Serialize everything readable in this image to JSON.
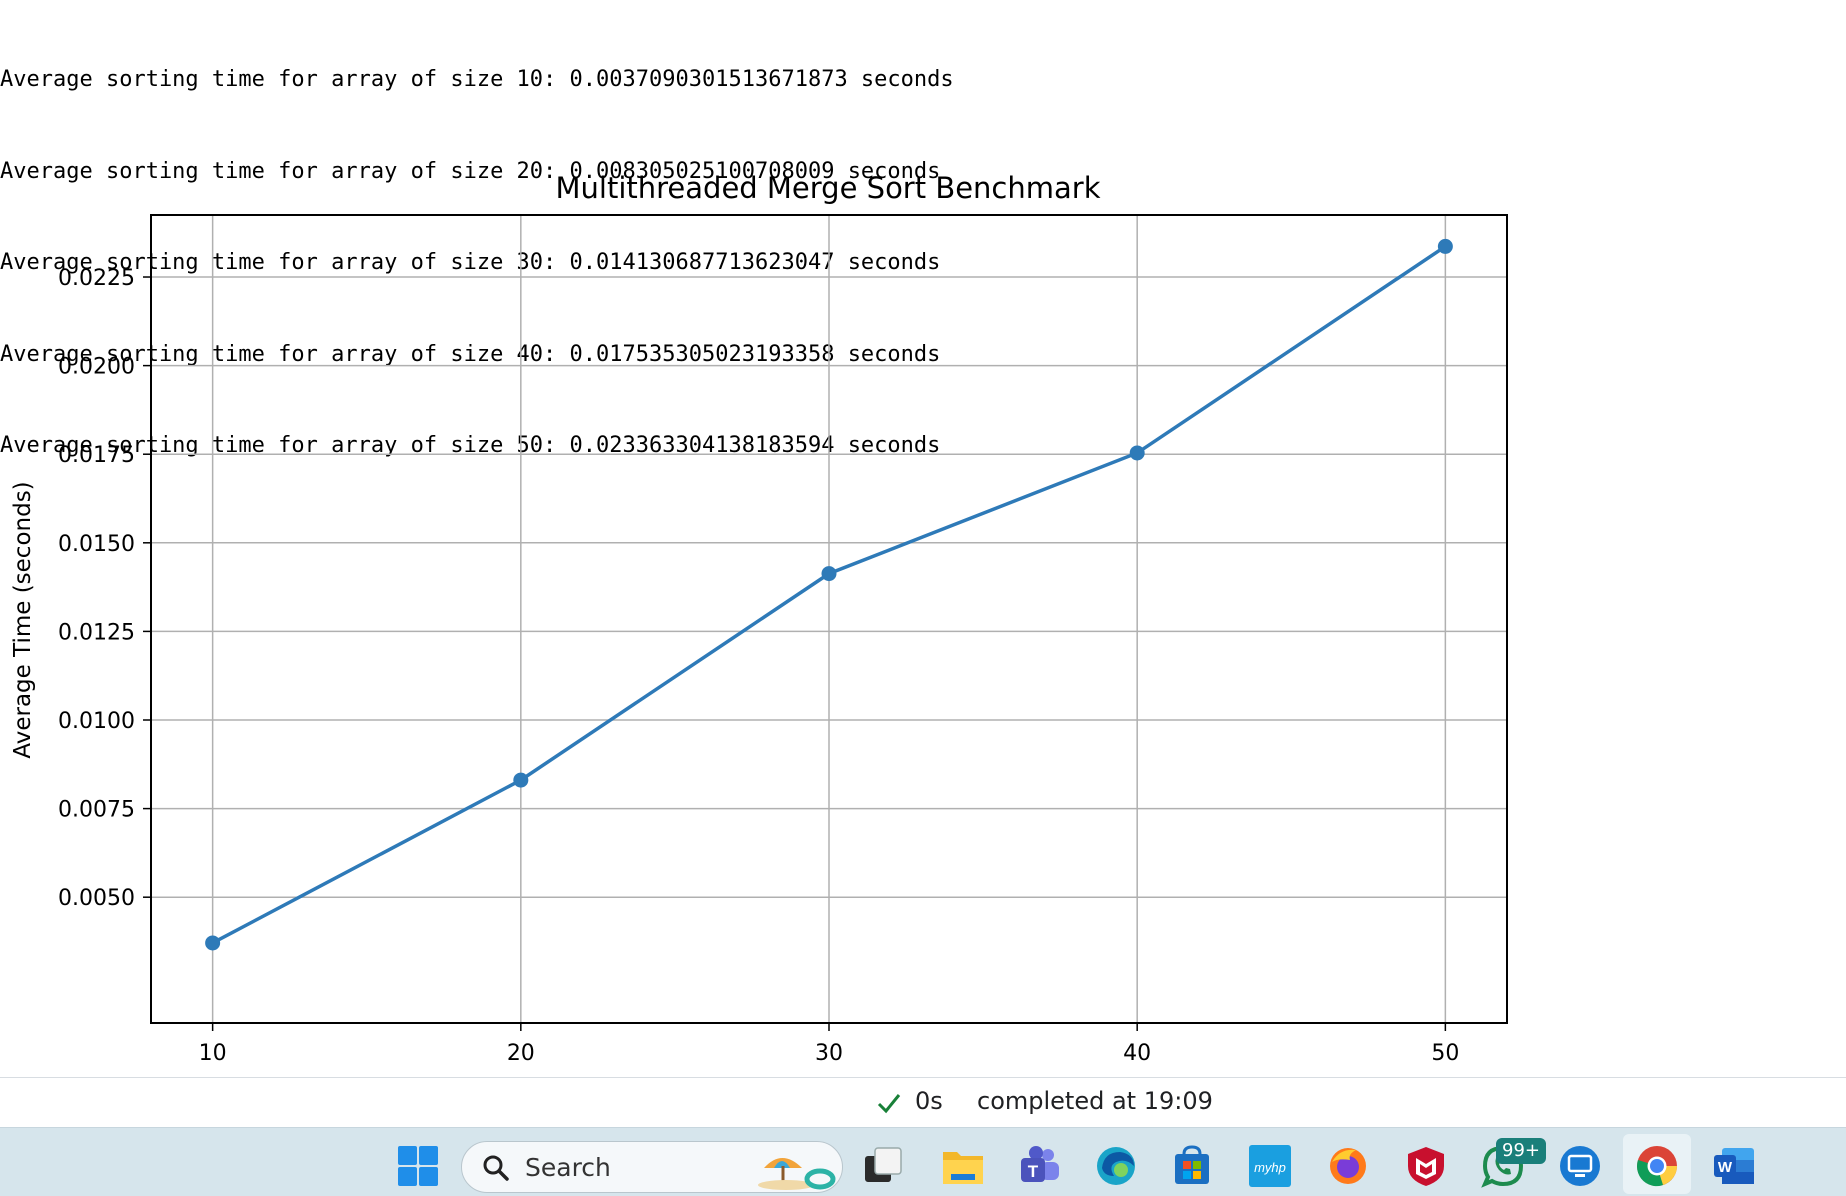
{
  "console": {
    "lines": [
      "Average sorting time for array of size 10: 0.0037090301513671873 seconds",
      "Average sorting time for array of size 20: 0.008305025100708009 seconds",
      "Average sorting time for array of size 30: 0.014130687713623047 seconds",
      "Average sorting time for array of size 40: 0.017535305023193358 seconds",
      "Average sorting time for array of size 50: 0.023363304138183594 seconds"
    ]
  },
  "chart_data": {
    "type": "line",
    "title": "Multithreaded Merge Sort Benchmark",
    "xlabel": "",
    "ylabel": "Average Time (seconds)",
    "x": [
      10,
      20,
      30,
      40,
      50
    ],
    "series": [
      {
        "values": [
          0.0037090301513671873,
          0.008305025100708009,
          0.014130687713623047,
          0.017535305023193358,
          0.023363304138183594
        ],
        "color": "#2e7ab8"
      }
    ],
    "xlim": [
      8,
      52
    ],
    "ylim": [
      0.00145,
      0.02425
    ],
    "xticks": [
      10,
      20,
      30,
      40,
      50
    ],
    "yticks": [
      0.005,
      0.0075,
      0.01,
      0.0125,
      0.015,
      0.0175,
      0.02,
      0.0225
    ],
    "ytick_labels": [
      "0.0050",
      "0.0075",
      "0.0100",
      "0.0125",
      "0.0150",
      "0.0175",
      "0.0200",
      "0.0225"
    ],
    "grid": true,
    "marker": "circle"
  },
  "status": {
    "duration": "0s",
    "text": "completed at 19:09",
    "check_color": "#188038"
  },
  "taskbar": {
    "search_label": "Search",
    "whatsapp_badge": "99+",
    "icons": [
      "windows-start-icon",
      "search-icon",
      "beach-widget-icon",
      "task-view-icon",
      "file-explorer-icon",
      "teams-icon",
      "edge-icon",
      "microsoft-store-icon",
      "myhp-icon",
      "firefox-icon",
      "mcafee-icon",
      "whatsapp-icon",
      "remote-desktop-icon",
      "chrome-icon",
      "word-icon"
    ],
    "myhp_text": "myhp",
    "word_text": "W",
    "teams_text": "T"
  }
}
